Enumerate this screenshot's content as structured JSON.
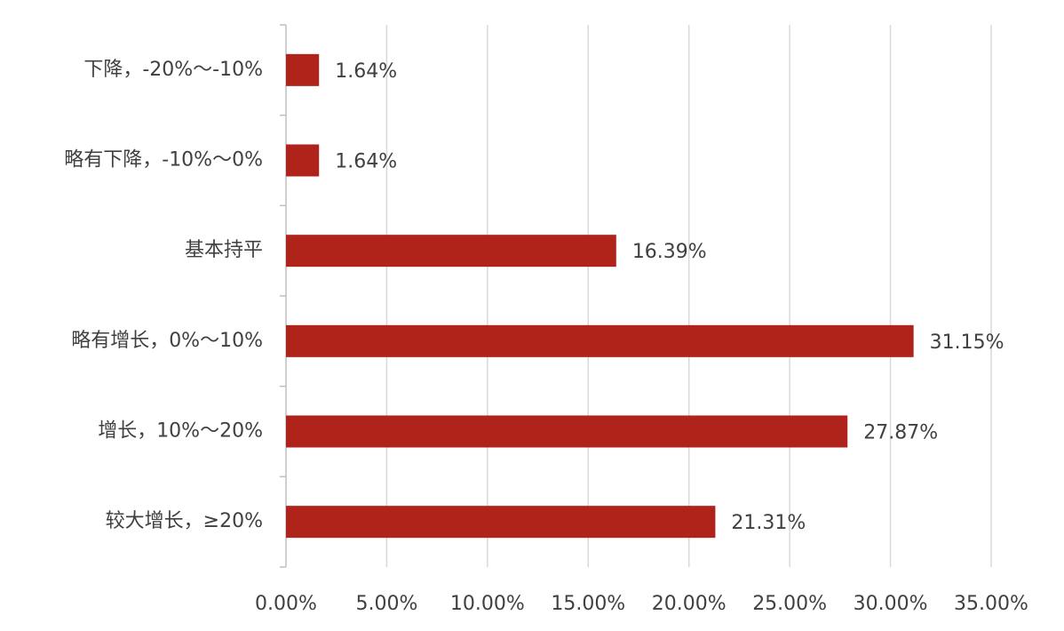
{
  "chart_data": {
    "type": "barh",
    "categories": [
      "下降，-20%～-10%",
      "略有下降，-10%～0%",
      "基本持平",
      "略有增长，0%～10%",
      "增长，10%～20%",
      "较大增长，≥20%"
    ],
    "values": [
      1.64,
      1.64,
      16.39,
      31.15,
      27.87,
      21.31
    ],
    "value_labels": [
      "1.64%",
      "1.64%",
      "16.39%",
      "31.15%",
      "27.87%",
      "21.31%"
    ],
    "color": "#b0231a",
    "xlim": [
      0,
      35
    ],
    "xticks": [
      {
        "value": 0,
        "label": "0.00%"
      },
      {
        "value": 5,
        "label": "5.00%"
      },
      {
        "value": 10,
        "label": "10.00%"
      },
      {
        "value": 15,
        "label": "15.00%"
      },
      {
        "value": 20,
        "label": "20.00%"
      },
      {
        "value": 25,
        "label": "25.00%"
      },
      {
        "value": 30,
        "label": "30.00%"
      },
      {
        "value": 35,
        "label": "35.00%"
      }
    ],
    "grid": true
  }
}
